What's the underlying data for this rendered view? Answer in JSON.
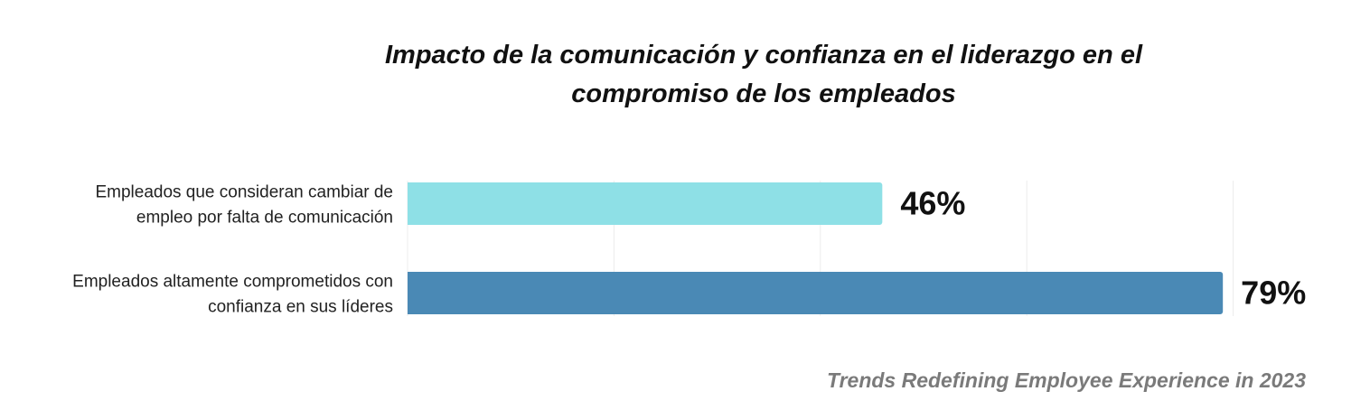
{
  "chart_data": {
    "type": "bar",
    "orientation": "horizontal",
    "title": "Impacto de la comunicación y confianza en el liderazgo en el compromiso de los empleados",
    "categories": [
      "Empleados que consideran cambiar de empleo por falta de comunicación",
      "Empleados altamente comprometidos con confianza en sus líderes"
    ],
    "category_lines": [
      [
        "Empleados que consideran cambiar de",
        "empleo por falta de comunicación"
      ],
      [
        "Empleados altamente comprometidos con",
        "confianza en sus líderes"
      ]
    ],
    "values": [
      46,
      79
    ],
    "value_labels": [
      "46%",
      "79%"
    ],
    "colors": [
      "#8ee0e6",
      "#4a89b5"
    ],
    "xlim": [
      0,
      80
    ],
    "grid": true,
    "legend": "none",
    "source": "Trends Redefining Employee Experience in 2023"
  }
}
